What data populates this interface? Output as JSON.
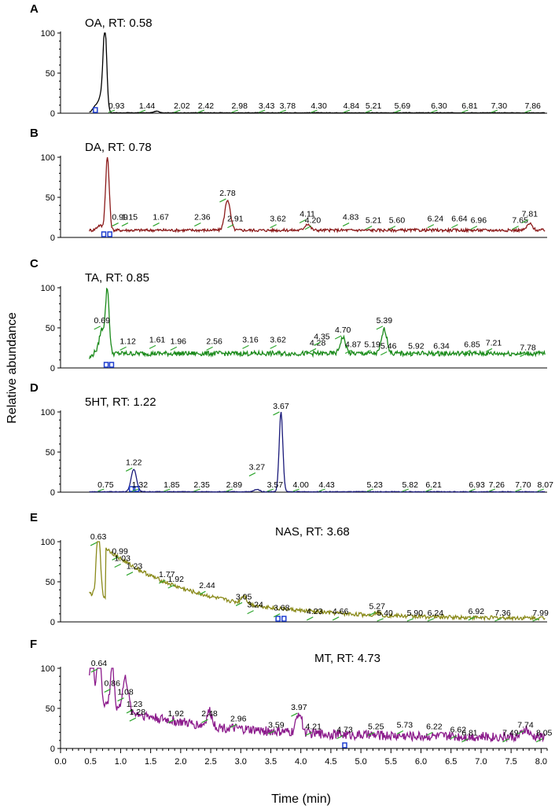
{
  "figure": {
    "ylabel": "Relative abundance",
    "xlabel": "Time (min)",
    "x_ticks": [
      "0.0",
      "0.5",
      "1.0",
      "1.5",
      "2.0",
      "2.5",
      "3.0",
      "3.5",
      "4.0",
      "4.5",
      "5.0",
      "5.5",
      "6.0",
      "6.5",
      "7.0",
      "7.5",
      "8.0"
    ]
  },
  "chart_data": [
    {
      "type": "line",
      "panel": "A",
      "title": "OA, RT: 0.58",
      "color": "#000000",
      "xlim": [
        0.0,
        8.1
      ],
      "ylim": [
        0,
        100
      ],
      "yticks": [
        0,
        50,
        100
      ],
      "baseline": 0.5,
      "noise": 0.3,
      "peaks": [
        {
          "rt": 0.58,
          "height": 8
        },
        {
          "rt": 0.68,
          "height": 20
        },
        {
          "rt": 0.74,
          "height": 100
        },
        {
          "rt": 1.6,
          "height": 2
        }
      ],
      "labels": [
        {
          "rt": 0.93,
          "text": "0.93",
          "y": 6
        },
        {
          "rt": 1.44,
          "text": "1.44",
          "y": 6
        },
        {
          "rt": 2.02,
          "text": "2.02",
          "y": 6
        },
        {
          "rt": 2.42,
          "text": "2.42",
          "y": 6
        },
        {
          "rt": 2.98,
          "text": "2.98",
          "y": 6
        },
        {
          "rt": 3.43,
          "text": "3.43",
          "y": 6
        },
        {
          "rt": 3.78,
          "text": "3.78",
          "y": 6
        },
        {
          "rt": 4.3,
          "text": "4.30",
          "y": 6
        },
        {
          "rt": 4.84,
          "text": "4.84",
          "y": 6
        },
        {
          "rt": 5.21,
          "text": "5.21",
          "y": 6
        },
        {
          "rt": 5.69,
          "text": "5.69",
          "y": 6
        },
        {
          "rt": 6.3,
          "text": "6.30",
          "y": 6
        },
        {
          "rt": 6.81,
          "text": "6.81",
          "y": 6
        },
        {
          "rt": 7.3,
          "text": "7.30",
          "y": 6
        },
        {
          "rt": 7.86,
          "text": "7.86",
          "y": 6
        }
      ],
      "marker_rt": [
        0.58
      ]
    },
    {
      "type": "line",
      "panel": "B",
      "title": "DA, RT: 0.78",
      "color": "#8b1a1a",
      "xlim": [
        0.0,
        8.1
      ],
      "ylim": [
        0,
        100
      ],
      "yticks": [
        0,
        50,
        100
      ],
      "baseline": 9,
      "noise": 1.8,
      "peaks": [
        {
          "rt": 0.65,
          "height": 6
        },
        {
          "rt": 0.78,
          "height": 92
        },
        {
          "rt": 2.78,
          "height": 38
        },
        {
          "rt": 4.11,
          "height": 8
        },
        {
          "rt": 7.81,
          "height": 8
        }
      ],
      "labels": [
        {
          "rt": 0.99,
          "text": "0.99",
          "y": 22
        },
        {
          "rt": 1.15,
          "text": "1.15",
          "y": 22
        },
        {
          "rt": 1.67,
          "text": "1.67",
          "y": 22
        },
        {
          "rt": 2.36,
          "text": "2.36",
          "y": 22
        },
        {
          "rt": 2.78,
          "text": "2.78",
          "y": 52
        },
        {
          "rt": 2.91,
          "text": "2.91",
          "y": 20
        },
        {
          "rt": 3.62,
          "text": "3.62",
          "y": 20
        },
        {
          "rt": 4.11,
          "text": "4.11",
          "y": 26
        },
        {
          "rt": 4.2,
          "text": "4.20",
          "y": 18
        },
        {
          "rt": 4.83,
          "text": "4.83",
          "y": 22
        },
        {
          "rt": 5.21,
          "text": "5.21",
          "y": 18
        },
        {
          "rt": 5.6,
          "text": "5.60",
          "y": 18
        },
        {
          "rt": 6.24,
          "text": "6.24",
          "y": 20
        },
        {
          "rt": 6.64,
          "text": "6.64",
          "y": 20
        },
        {
          "rt": 6.96,
          "text": "6.96",
          "y": 18
        },
        {
          "rt": 7.65,
          "text": "7.65",
          "y": 18
        },
        {
          "rt": 7.81,
          "text": "7.81",
          "y": 26
        }
      ],
      "marker_rt": [
        0.72,
        0.82
      ]
    },
    {
      "type": "line",
      "panel": "C",
      "title": "TA, RT: 0.85",
      "color": "#1a8a1a",
      "xlim": [
        0.0,
        8.1
      ],
      "ylim": [
        0,
        100
      ],
      "yticks": [
        0,
        50,
        100
      ],
      "baseline": 18,
      "noise": 3,
      "peaks": [
        {
          "rt": 0.69,
          "height": 30
        },
        {
          "rt": 0.78,
          "height": 78
        },
        {
          "rt": 4.7,
          "height": 20
        },
        {
          "rt": 5.39,
          "height": 30
        }
      ],
      "labels": [
        {
          "rt": 0.69,
          "text": "0.69",
          "y": 56
        },
        {
          "rt": 1.12,
          "text": "1.12",
          "y": 30
        },
        {
          "rt": 1.61,
          "text": "1.61",
          "y": 32
        },
        {
          "rt": 1.96,
          "text": "1.96",
          "y": 30
        },
        {
          "rt": 2.56,
          "text": "2.56",
          "y": 30
        },
        {
          "rt": 3.16,
          "text": "3.16",
          "y": 32
        },
        {
          "rt": 3.62,
          "text": "3.62",
          "y": 32
        },
        {
          "rt": 4.28,
          "text": "4.28",
          "y": 28
        },
        {
          "rt": 4.35,
          "text": "4.35",
          "y": 36
        },
        {
          "rt": 4.7,
          "text": "4.70",
          "y": 44
        },
        {
          "rt": 4.87,
          "text": "4.87",
          "y": 26
        },
        {
          "rt": 5.19,
          "text": "5.19",
          "y": 26
        },
        {
          "rt": 5.39,
          "text": "5.39",
          "y": 56
        },
        {
          "rt": 5.46,
          "text": "5.46",
          "y": 24
        },
        {
          "rt": 5.92,
          "text": "5.92",
          "y": 24
        },
        {
          "rt": 6.34,
          "text": "6.34",
          "y": 24
        },
        {
          "rt": 6.85,
          "text": "6.85",
          "y": 26
        },
        {
          "rt": 7.21,
          "text": "7.21",
          "y": 28
        },
        {
          "rt": 7.78,
          "text": "7.78",
          "y": 22
        }
      ],
      "marker_rt": [
        0.76,
        0.85
      ]
    },
    {
      "type": "line",
      "panel": "D",
      "title": "5HT, RT: 1.22",
      "color": "#1a1a7a",
      "xlim": [
        0.0,
        8.1
      ],
      "ylim": [
        0,
        100
      ],
      "yticks": [
        0,
        50,
        100
      ],
      "baseline": 0.5,
      "noise": 0.4,
      "peaks": [
        {
          "rt": 1.22,
          "height": 28
        },
        {
          "rt": 3.27,
          "height": 3
        },
        {
          "rt": 3.67,
          "height": 100
        }
      ],
      "labels": [
        {
          "rt": 0.75,
          "text": "0.75",
          "y": 6
        },
        {
          "rt": 1.22,
          "text": "1.22",
          "y": 34
        },
        {
          "rt": 1.32,
          "text": "1.32",
          "y": 6
        },
        {
          "rt": 1.85,
          "text": "1.85",
          "y": 6
        },
        {
          "rt": 2.35,
          "text": "2.35",
          "y": 6
        },
        {
          "rt": 2.89,
          "text": "2.89",
          "y": 6
        },
        {
          "rt": 3.27,
          "text": "3.27",
          "y": 28
        },
        {
          "rt": 3.57,
          "text": "3.57",
          "y": 6
        },
        {
          "rt": 3.67,
          "text": "3.67",
          "y": 104
        },
        {
          "rt": 4.0,
          "text": "4.00",
          "y": 6
        },
        {
          "rt": 4.43,
          "text": "4.43",
          "y": 6
        },
        {
          "rt": 5.23,
          "text": "5.23",
          "y": 6
        },
        {
          "rt": 5.82,
          "text": "5.82",
          "y": 6
        },
        {
          "rt": 6.21,
          "text": "6.21",
          "y": 6
        },
        {
          "rt": 6.93,
          "text": "6.93",
          "y": 6
        },
        {
          "rt": 7.26,
          "text": "7.26",
          "y": 6
        },
        {
          "rt": 7.7,
          "text": "7.70",
          "y": 6
        },
        {
          "rt": 8.07,
          "text": "8.07",
          "y": 6
        }
      ],
      "marker_rt": [
        1.18,
        1.27
      ]
    },
    {
      "type": "line",
      "panel": "E",
      "title": "NAS, RT: 3.68",
      "color": "#8a8a1a",
      "xlim": [
        0.0,
        8.1
      ],
      "ylim": [
        0,
        100
      ],
      "yticks": [
        0,
        50,
        100
      ],
      "baseline": 4,
      "noise": 2.5,
      "peaks": [
        {
          "rt": 0.63,
          "height": 96
        },
        {
          "rt": 3.05,
          "height": 10
        },
        {
          "rt": 5.27,
          "height": 4
        }
      ],
      "labels": [
        {
          "rt": 0.63,
          "text": "0.63",
          "y": 103
        },
        {
          "rt": 0.99,
          "text": "0.99",
          "y": 85
        },
        {
          "rt": 1.03,
          "text": "1.03",
          "y": 76
        },
        {
          "rt": 1.23,
          "text": "1.23",
          "y": 66
        },
        {
          "rt": 1.77,
          "text": "1.77",
          "y": 56
        },
        {
          "rt": 1.92,
          "text": "1.92",
          "y": 50
        },
        {
          "rt": 2.44,
          "text": "2.44",
          "y": 42
        },
        {
          "rt": 3.05,
          "text": "3.05",
          "y": 28
        },
        {
          "rt": 3.24,
          "text": "3.24",
          "y": 18
        },
        {
          "rt": 3.68,
          "text": "3.68",
          "y": 14
        },
        {
          "rt": 4.23,
          "text": "4.23",
          "y": 10
        },
        {
          "rt": 4.66,
          "text": "4.66",
          "y": 10
        },
        {
          "rt": 5.27,
          "text": "5.27",
          "y": 16
        },
        {
          "rt": 5.4,
          "text": "5.40",
          "y": 8
        },
        {
          "rt": 5.9,
          "text": "5.90",
          "y": 8
        },
        {
          "rt": 6.24,
          "text": "6.24",
          "y": 8
        },
        {
          "rt": 6.92,
          "text": "6.92",
          "y": 10
        },
        {
          "rt": 7.36,
          "text": "7.36",
          "y": 8
        },
        {
          "rt": 7.99,
          "text": "7.99",
          "y": 8
        }
      ],
      "marker_rt": [
        3.62,
        3.72
      ]
    },
    {
      "type": "line",
      "panel": "F",
      "title": "MT, RT: 4.73",
      "color": "#8b1a8b",
      "xlim": [
        0.0,
        8.1
      ],
      "ylim": [
        0,
        100
      ],
      "yticks": [
        0,
        50,
        100
      ],
      "baseline": 15,
      "noise": 6,
      "peaks": [
        {
          "rt": 0.52,
          "height": 82
        },
        {
          "rt": 0.64,
          "height": 84
        },
        {
          "rt": 0.86,
          "height": 52
        },
        {
          "rt": 1.08,
          "height": 40
        },
        {
          "rt": 2.48,
          "height": 18
        },
        {
          "rt": 3.97,
          "height": 26
        },
        {
          "rt": 7.74,
          "height": 10
        }
      ],
      "labels": [
        {
          "rt": 0.64,
          "text": "0.64",
          "y": 103
        },
        {
          "rt": 0.86,
          "text": "0.86",
          "y": 78
        },
        {
          "rt": 1.08,
          "text": "1.08",
          "y": 67
        },
        {
          "rt": 1.23,
          "text": "1.23",
          "y": 52
        },
        {
          "rt": 1.28,
          "text": "1.28",
          "y": 42
        },
        {
          "rt": 1.92,
          "text": "1.92",
          "y": 40
        },
        {
          "rt": 2.48,
          "text": "2.48",
          "y": 40
        },
        {
          "rt": 2.96,
          "text": "2.96",
          "y": 34
        },
        {
          "rt": 3.59,
          "text": "3.59",
          "y": 26
        },
        {
          "rt": 3.97,
          "text": "3.97",
          "y": 48
        },
        {
          "rt": 4.21,
          "text": "4.21",
          "y": 24
        },
        {
          "rt": 4.73,
          "text": "4.73",
          "y": 20
        },
        {
          "rt": 5.25,
          "text": "5.25",
          "y": 24
        },
        {
          "rt": 5.73,
          "text": "5.73",
          "y": 26
        },
        {
          "rt": 6.22,
          "text": "6.22",
          "y": 24
        },
        {
          "rt": 6.62,
          "text": "6.62",
          "y": 20
        },
        {
          "rt": 6.81,
          "text": "6.81",
          "y": 16
        },
        {
          "rt": 7.49,
          "text": "7.49",
          "y": 16
        },
        {
          "rt": 7.74,
          "text": "7.74",
          "y": 26
        },
        {
          "rt": 8.05,
          "text": "8.05",
          "y": 16
        }
      ],
      "marker_rt": [
        4.73
      ]
    }
  ]
}
